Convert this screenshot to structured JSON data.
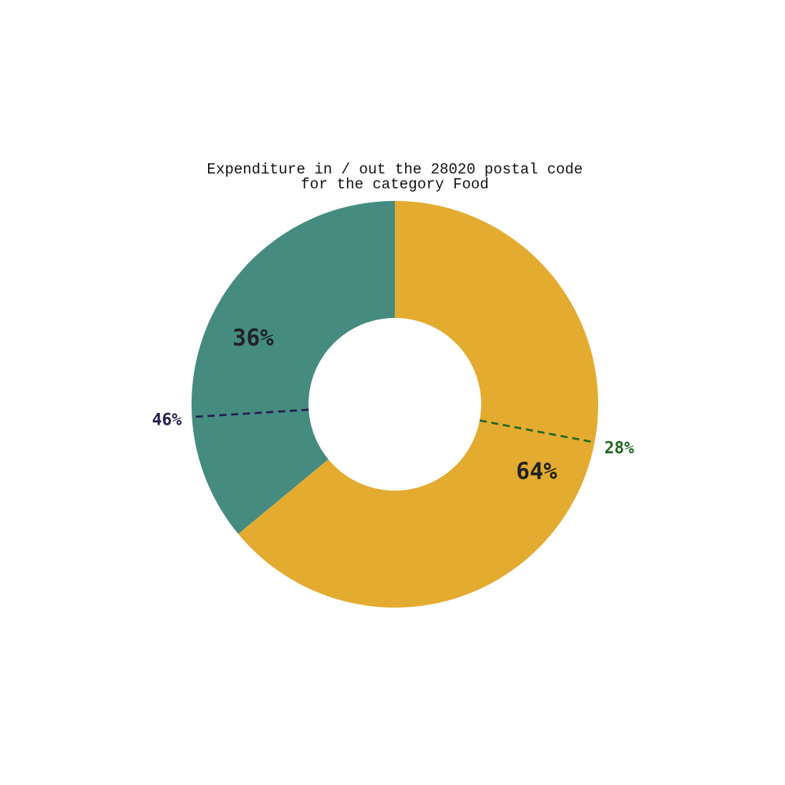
{
  "chart_data": {
    "type": "pie",
    "style": "donut",
    "title_lines": [
      "Expenditure in / out the 28020 postal code",
      "for the category Food"
    ],
    "slices": [
      {
        "value": 64,
        "label": "64%",
        "color": "#E3AB2F"
      },
      {
        "value": 36,
        "label": "36%",
        "color": "#458B80"
      }
    ],
    "sub_splits": [
      {
        "value": 28,
        "label": "28%",
        "color": "#226622"
      },
      {
        "value": 46,
        "label": "46%",
        "color": "#221C4F"
      }
    ],
    "label_color": "#222222",
    "start_angle": "top",
    "direction": "clockwise"
  }
}
